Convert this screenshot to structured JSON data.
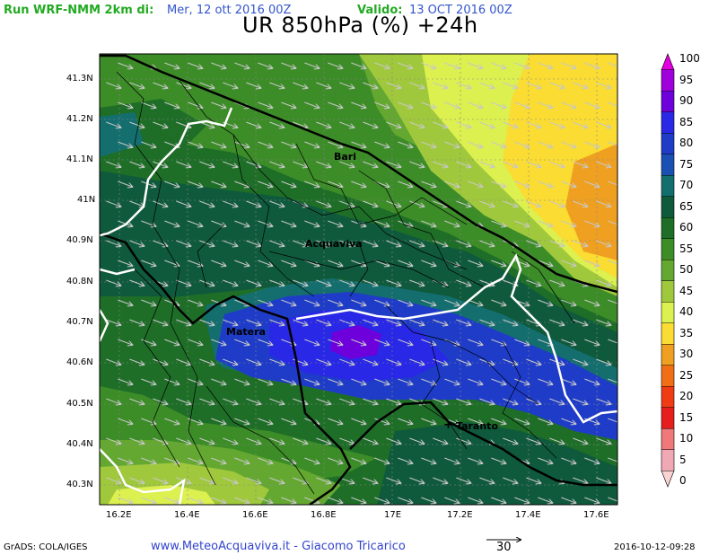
{
  "header": {
    "run_label": "Run WRF-NMM 2km di:",
    "run_date": "Mer, 12 ott 2016 00Z",
    "valid_label": "Valido:",
    "valid_date": "13 OCT 2016 00Z",
    "title": "UR 850hPa (%) +24h"
  },
  "colors": {
    "run_label": "#22aa22",
    "run_date": "#3355cc",
    "valid_label": "#22aa22",
    "valid_date": "#3355cc",
    "footer_link": "#3344cc"
  },
  "y_axis_labels": [
    "41.3N",
    "41.2N",
    "41.1N",
    "41N",
    "40.9N",
    "40.8N",
    "40.7N",
    "40.6N",
    "40.5N",
    "40.4N",
    "40.3N"
  ],
  "x_axis_labels": [
    "16.2E",
    "16.4E",
    "16.6E",
    "16.8E",
    "17E",
    "17.2E",
    "17.4E",
    "17.6E"
  ],
  "cities": [
    "Bari",
    "Acquaviva",
    "Matera",
    "Taranto"
  ],
  "colorbar": {
    "labels": [
      "100",
      "95",
      "90",
      "85",
      "80",
      "75",
      "70",
      "65",
      "60",
      "55",
      "50",
      "45",
      "40",
      "35",
      "30",
      "25",
      "20",
      "15",
      "10",
      "5",
      "0"
    ],
    "colors": [
      "#e000e0",
      "#a000dc",
      "#6e00dc",
      "#2828e6",
      "#1e3cc8",
      "#1a50b4",
      "#146e6e",
      "#0f5a3c",
      "#1e6e28",
      "#3c8c28",
      "#64a832",
      "#a0c83c",
      "#dcf050",
      "#fadc32",
      "#f0a020",
      "#f06e14",
      "#f03c14",
      "#e61e1e",
      "#f07878",
      "#f0a8b4",
      "#fad2d2"
    ]
  },
  "vector_reference": "30",
  "footer": {
    "left": "GrADS: COLA/IGES",
    "center": "www.MeteoAcquaviva.it - Giacomo Tricarico",
    "right": "2016-10-12-09:28"
  }
}
